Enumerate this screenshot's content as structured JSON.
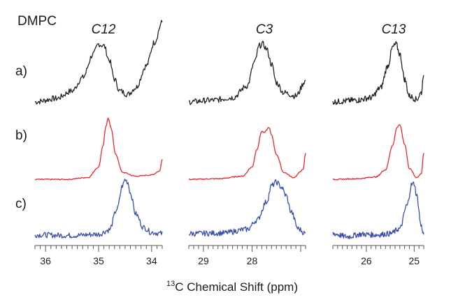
{
  "title": "DMPC",
  "xlabel_sup": "13",
  "xlabel_main": "C Chemical Shift (ppm)",
  "row_labels": [
    "a)",
    "b)",
    "c)"
  ],
  "series_colors": [
    "#222222",
    "#e8272a",
    "#3b4fa8"
  ],
  "chart_data": [
    {
      "type": "line",
      "carbon": "C12",
      "xlim": [
        36.2,
        33.8
      ],
      "ticks": [
        36,
        35,
        34
      ],
      "tick_labels": [
        "36",
        "35",
        "34"
      ],
      "series": [
        {
          "label": "a)",
          "x": [
            36.2,
            35.8,
            35.5,
            35.3,
            35.1,
            35.0,
            34.9,
            34.8,
            34.7,
            34.6,
            34.45,
            34.3,
            34.1,
            33.95,
            33.8
          ],
          "y": [
            0.05,
            0.09,
            0.18,
            0.34,
            0.62,
            0.74,
            0.72,
            0.55,
            0.32,
            0.18,
            0.14,
            0.22,
            0.48,
            0.76,
            1.0
          ]
        },
        {
          "label": "b)",
          "x": [
            36.2,
            35.6,
            35.2,
            35.0,
            34.92,
            34.86,
            34.82,
            34.76,
            34.68,
            34.55,
            34.3,
            34.0,
            33.85,
            33.8
          ],
          "y": [
            0.03,
            0.03,
            0.06,
            0.22,
            0.55,
            0.86,
            0.98,
            0.82,
            0.42,
            0.14,
            0.08,
            0.1,
            0.16,
            0.34
          ]
        },
        {
          "label": "c)",
          "x": [
            36.2,
            35.5,
            35.0,
            34.8,
            34.65,
            34.55,
            34.5,
            34.45,
            34.4,
            34.3,
            34.15,
            34.0,
            33.8
          ],
          "y": [
            0.06,
            0.05,
            0.07,
            0.14,
            0.48,
            0.86,
            0.96,
            0.92,
            0.74,
            0.4,
            0.18,
            0.1,
            0.08
          ]
        }
      ]
    },
    {
      "type": "line",
      "carbon": "C3",
      "xlim": [
        29.3,
        26.9
      ],
      "ticks": [
        29,
        28
      ],
      "tick_labels": [
        "29",
        "28"
      ],
      "series": [
        {
          "label": "a)",
          "x": [
            29.3,
            28.8,
            28.4,
            28.1,
            27.95,
            27.85,
            27.78,
            27.7,
            27.6,
            27.5,
            27.35,
            27.1,
            26.9
          ],
          "y": [
            0.05,
            0.07,
            0.1,
            0.24,
            0.52,
            0.72,
            0.74,
            0.68,
            0.5,
            0.28,
            0.16,
            0.12,
            0.3
          ]
        },
        {
          "label": "b)",
          "x": [
            29.3,
            28.7,
            28.2,
            28.0,
            27.9,
            27.8,
            27.75,
            27.65,
            27.6,
            27.5,
            27.35,
            27.15,
            26.95,
            26.9
          ],
          "y": [
            0.03,
            0.04,
            0.08,
            0.22,
            0.5,
            0.78,
            0.76,
            0.84,
            0.72,
            0.42,
            0.14,
            0.06,
            0.18,
            0.44
          ]
        },
        {
          "label": "c)",
          "x": [
            29.3,
            28.6,
            28.1,
            27.9,
            27.7,
            27.6,
            27.5,
            27.4,
            27.3,
            27.2,
            27.05,
            26.9
          ],
          "y": [
            0.08,
            0.09,
            0.15,
            0.3,
            0.6,
            0.86,
            0.92,
            0.84,
            0.7,
            0.44,
            0.16,
            0.08
          ]
        }
      ]
    },
    {
      "type": "line",
      "carbon": "C13",
      "xlim": [
        26.7,
        24.8
      ],
      "ticks": [
        26,
        25
      ],
      "tick_labels": [
        "26",
        "25"
      ],
      "series": [
        {
          "label": "a)",
          "x": [
            26.7,
            26.2,
            25.9,
            25.7,
            25.55,
            25.45,
            25.38,
            25.3,
            25.2,
            25.1,
            24.95,
            24.85,
            24.8
          ],
          "y": [
            0.05,
            0.07,
            0.1,
            0.22,
            0.48,
            0.7,
            0.74,
            0.62,
            0.32,
            0.12,
            0.08,
            0.16,
            0.4
          ]
        },
        {
          "label": "b)",
          "x": [
            26.7,
            26.2,
            25.8,
            25.6,
            25.45,
            25.36,
            25.3,
            25.2,
            25.1,
            24.95,
            24.85,
            24.8
          ],
          "y": [
            0.03,
            0.04,
            0.07,
            0.18,
            0.56,
            0.84,
            0.88,
            0.58,
            0.2,
            0.06,
            0.12,
            0.44
          ]
        },
        {
          "label": "c)",
          "x": [
            26.7,
            26.4,
            26.1,
            25.8,
            25.5,
            25.3,
            25.15,
            25.05,
            25.0,
            24.95,
            24.85,
            24.8
          ],
          "y": [
            0.08,
            0.03,
            0.07,
            0.06,
            0.08,
            0.16,
            0.54,
            0.88,
            0.9,
            0.7,
            0.2,
            0.06
          ]
        }
      ]
    }
  ]
}
